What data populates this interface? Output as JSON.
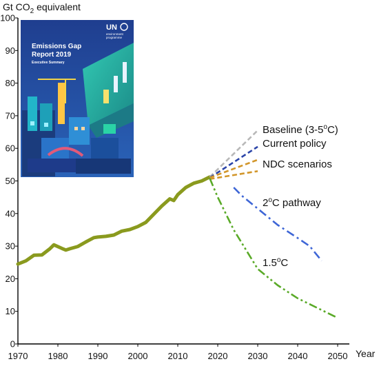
{
  "chart_data": {
    "type": "line",
    "ylabel": {
      "prefix": "Gt CO",
      "subscript": "2",
      "suffix": " equivalent"
    },
    "xlabel": "Year",
    "xlim": [
      1970,
      2050
    ],
    "ylim": [
      0,
      100
    ],
    "xticks": [
      1970,
      1980,
      1990,
      2000,
      2010,
      2020,
      2030,
      2040,
      2050
    ],
    "yticks": [
      0,
      10,
      20,
      30,
      40,
      50,
      60,
      70,
      80,
      90,
      100
    ],
    "grid": false,
    "colors": {
      "historical": "#8a9a1e",
      "baseline": "#b8b8b8",
      "current_policy": "#2b44a8",
      "ndc": "#d2962a",
      "pathway_2c": "#3e66d6",
      "pathway_15c": "#5aaa28",
      "axis": "#000000"
    },
    "historical": {
      "x": [
        1970,
        1972,
        1974,
        1976,
        1978,
        1979,
        1981,
        1982,
        1983,
        1985,
        1987,
        1989,
        1990,
        1992,
        1994,
        1996,
        1998,
        2000,
        2002,
        2004,
        2006,
        2008,
        2009,
        2010,
        2012,
        2014,
        2016,
        2018
      ],
      "y": [
        24.5,
        25.5,
        27.2,
        27.3,
        29.2,
        30.4,
        29.3,
        28.8,
        29.2,
        29.9,
        31.3,
        32.6,
        32.8,
        33.0,
        33.4,
        34.6,
        35.1,
        36.0,
        37.3,
        39.8,
        42.3,
        44.5,
        44.0,
        45.8,
        48.0,
        49.3,
        50.0,
        51.2
      ]
    },
    "scenarios": [
      {
        "key": "baseline",
        "label": "Baseline (3-5",
        "sup": "o",
        "label_after": "C)",
        "style": "dashed",
        "x": [
          2018,
          2030
        ],
        "y": [
          51.2,
          65.5
        ]
      },
      {
        "key": "current_policy",
        "label": "Current policy",
        "style": "dashed",
        "x": [
          2018,
          2030
        ],
        "y": [
          51.0,
          60.5
        ]
      },
      {
        "key": "ndc",
        "label": "NDC scenarios",
        "style": "dashed",
        "x": [
          2018,
          2030
        ],
        "y": [
          51.0,
          56.5
        ]
      },
      {
        "key": "ndc_lower",
        "label": "",
        "style": "dashed",
        "x": [
          2018,
          2030
        ],
        "y": [
          50.6,
          53.0
        ]
      },
      {
        "key": "pathway_2c",
        "label": "2",
        "sup": "o",
        "label_after": "C pathway",
        "style": "dashdot",
        "x": [
          2024,
          2026,
          2030,
          2035,
          2040,
          2043,
          2046
        ],
        "y": [
          48.0,
          45.5,
          41.5,
          36.5,
          32.5,
          30.0,
          25.5
        ]
      },
      {
        "key": "pathway_15c",
        "label": "1.5",
        "sup": "o",
        "label_after": "C",
        "style": "dashdotdot",
        "x": [
          2018,
          2020,
          2024,
          2030,
          2035,
          2040,
          2045,
          2050
        ],
        "y": [
          50.8,
          45.0,
          35.0,
          23.0,
          18.0,
          14.0,
          11.0,
          8.0
        ]
      }
    ],
    "inset_cover": {
      "brand": "UN",
      "brand_sub_1": "environment",
      "brand_sub_2": "programme",
      "title_line_1": "Emissions Gap",
      "title_line_2": "Report 2019",
      "subtitle": "Executive Summary"
    }
  }
}
